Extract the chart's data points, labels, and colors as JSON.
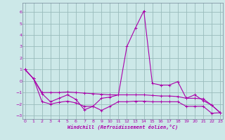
{
  "xlabel": "Windchill (Refroidissement éolien,°C)",
  "background_color": "#cce8e8",
  "grid_color": "#99bbbb",
  "line_color": "#aa00aa",
  "x": [
    0,
    1,
    2,
    3,
    4,
    5,
    6,
    7,
    8,
    9,
    10,
    11,
    12,
    13,
    14,
    15,
    16,
    17,
    18,
    19,
    20,
    21,
    22,
    23
  ],
  "y_main": [
    1.0,
    0.2,
    -1.1,
    -1.8,
    -1.5,
    -1.2,
    -1.6,
    -2.5,
    -2.2,
    -1.5,
    -1.4,
    -1.2,
    3.0,
    4.6,
    6.1,
    -0.2,
    -0.35,
    -0.35,
    -0.05,
    -1.5,
    -1.2,
    -1.7,
    -2.1,
    -2.75
  ],
  "y_line2": [
    1.0,
    0.2,
    -1.0,
    -1.0,
    -1.0,
    -0.95,
    -1.0,
    -1.05,
    -1.1,
    -1.15,
    -1.2,
    -1.2,
    -1.2,
    -1.2,
    -1.2,
    -1.25,
    -1.3,
    -1.3,
    -1.35,
    -1.5,
    -1.5,
    -1.55,
    -2.1,
    -2.75
  ],
  "y_line3": [
    1.0,
    0.2,
    -1.8,
    -2.0,
    -1.85,
    -1.75,
    -1.9,
    -2.2,
    -2.2,
    -2.55,
    -2.2,
    -1.8,
    -1.8,
    -1.75,
    -1.75,
    -1.8,
    -1.8,
    -1.8,
    -1.8,
    -2.2,
    -2.2,
    -2.2,
    -2.8,
    -2.75
  ],
  "ylim": [
    -3.3,
    6.8
  ],
  "xlim": [
    -0.3,
    23.3
  ],
  "yticks": [
    -3,
    -2,
    -1,
    0,
    1,
    2,
    3,
    4,
    5,
    6
  ],
  "xticks": [
    0,
    1,
    2,
    3,
    4,
    5,
    6,
    7,
    8,
    9,
    10,
    11,
    12,
    13,
    14,
    15,
    16,
    17,
    18,
    19,
    20,
    21,
    22,
    23
  ]
}
